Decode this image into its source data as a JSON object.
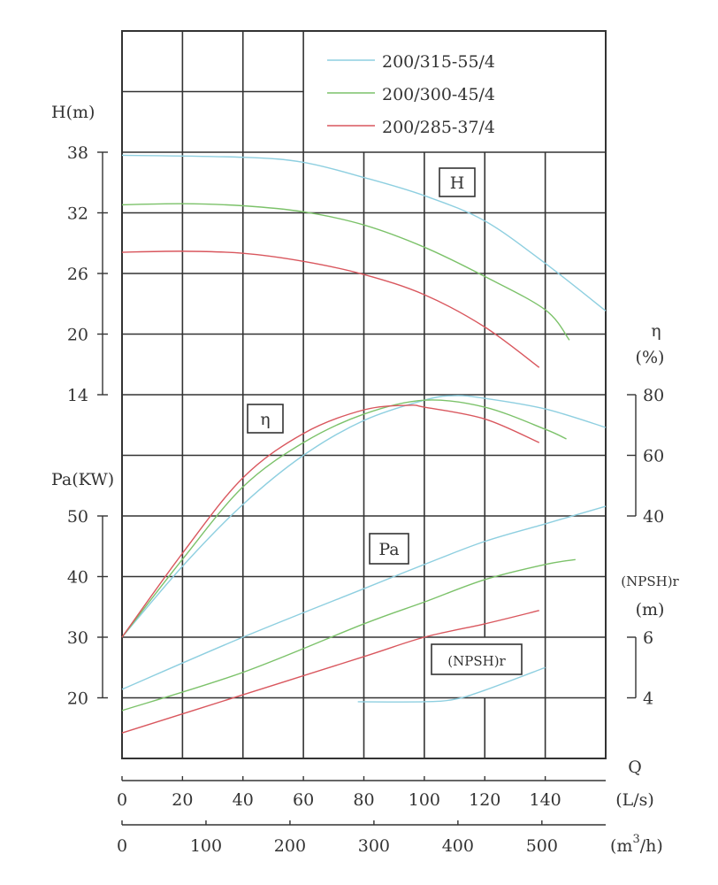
{
  "chart_data": {
    "type": "line",
    "title": "",
    "legend": {
      "placement": "top-right",
      "entries": [
        "200/315-55/4",
        "200/300-45/4",
        "200/285-37/4"
      ]
    },
    "colors": {
      "200/315-55/4": "#8ecfe0",
      "200/300-45/4": "#7cc26a",
      "200/285-37/4": "#d9575e"
    },
    "grid": true,
    "x_axes": [
      {
        "label_top": "Q",
        "unit": "(L/s)",
        "range": [
          0,
          160
        ],
        "ticks": [
          0,
          20,
          40,
          60,
          80,
          100,
          120,
          140
        ]
      },
      {
        "unit": "(m³/h)",
        "unit_base": "(m",
        "unit_sup": "3",
        "unit_tail": "/h)",
        "range": [
          0,
          576
        ],
        "ticks": [
          0,
          100,
          200,
          300,
          400,
          500
        ]
      }
    ],
    "y_axes": {
      "H": {
        "label": "H(m)",
        "range": [
          14,
          38
        ],
        "ticks": [
          38,
          32,
          26,
          20,
          14
        ]
      },
      "eta": {
        "label": "η",
        "unit": "(%)",
        "range": [
          40,
          80
        ],
        "ticks": [
          80,
          60,
          40
        ]
      },
      "Pa": {
        "label": "Pa(KW)",
        "range": [
          20,
          50
        ],
        "ticks": [
          50,
          40,
          30,
          20
        ]
      },
      "NPSH": {
        "label": "(NPSH)r",
        "unit": "(m)",
        "range": [
          4,
          6
        ],
        "ticks": [
          6,
          4
        ]
      }
    },
    "curve_labels": {
      "H": "H",
      "eta": "η",
      "Pa": "Pa",
      "NPSH": "(NPSH)r"
    },
    "series": [
      {
        "name": "200/315-55/4",
        "curve": "H",
        "x": [
          0,
          40,
          60,
          80,
          100,
          120,
          140,
          160
        ],
        "y": [
          37.7,
          37.5,
          37,
          35.5,
          33.7,
          31.2,
          27,
          22.3
        ]
      },
      {
        "name": "200/300-45/4",
        "curve": "H",
        "x": [
          0,
          20,
          40,
          60,
          80,
          100,
          120,
          140,
          148
        ],
        "y": [
          32.8,
          32.9,
          32.7,
          32.1,
          30.8,
          28.6,
          25.7,
          22.4,
          19.4
        ]
      },
      {
        "name": "200/285-37/4",
        "curve": "H",
        "x": [
          0,
          20,
          40,
          60,
          80,
          100,
          120,
          138
        ],
        "y": [
          28.1,
          28.2,
          28,
          27.2,
          25.9,
          23.9,
          20.7,
          16.7
        ]
      },
      {
        "name": "200/315-55/4",
        "curve": "eta",
        "x": [
          0,
          20,
          40,
          60,
          80,
          100,
          110,
          120,
          140,
          160
        ],
        "y": [
          0,
          23.4,
          43.8,
          60,
          71.5,
          78.2,
          79.7,
          78.8,
          75.3,
          69.2
        ]
      },
      {
        "name": "200/300-45/4",
        "curve": "eta",
        "x": [
          0,
          20,
          40,
          60,
          80,
          100,
          120,
          140,
          147
        ],
        "y": [
          0,
          25.7,
          49.6,
          64.2,
          73.6,
          78.2,
          75.9,
          68.6,
          65.4
        ]
      },
      {
        "name": "200/285-37/4",
        "curve": "eta",
        "x": [
          0,
          20,
          40,
          60,
          80,
          95,
          100,
          120,
          138
        ],
        "y": [
          0,
          27.7,
          52.6,
          67.2,
          75,
          76.5,
          75.9,
          72,
          64.2
        ]
      },
      {
        "name": "200/315-55/4",
        "curve": "Pa",
        "x": [
          0,
          40,
          80,
          100,
          120,
          140,
          160
        ],
        "y": [
          21.4,
          30,
          38,
          42,
          45.8,
          48.7,
          51.6
        ]
      },
      {
        "name": "200/300-45/4",
        "curve": "Pa",
        "x": [
          0,
          40,
          80,
          100,
          120,
          140,
          150
        ],
        "y": [
          17.9,
          24.2,
          32.2,
          35.8,
          39.5,
          42,
          42.8
        ]
      },
      {
        "name": "200/285-37/4",
        "curve": "Pa",
        "x": [
          0,
          40,
          80,
          100,
          120,
          138
        ],
        "y": [
          14.2,
          20.5,
          26.8,
          30,
          32.2,
          34.4
        ]
      },
      {
        "name": "200/315-55/4",
        "curve": "NPSH",
        "x": [
          78,
          100,
          110,
          120,
          140
        ],
        "y": [
          3.87,
          3.87,
          3.95,
          4.25,
          5.0
        ]
      }
    ]
  }
}
